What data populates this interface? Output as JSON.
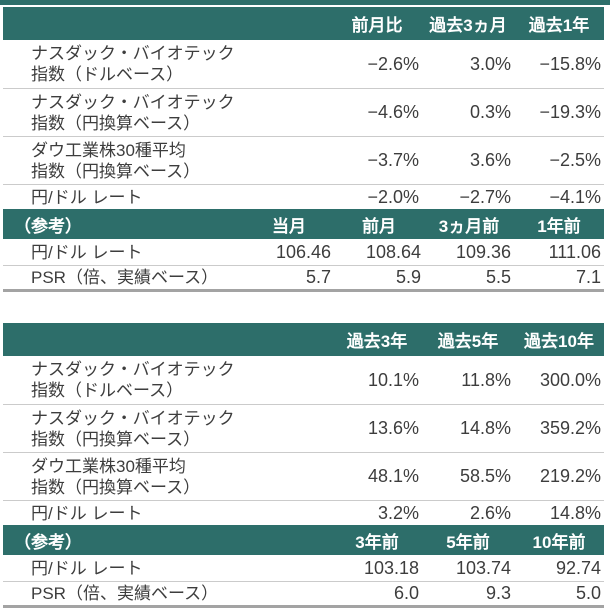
{
  "theme": {
    "teal": "#2D6E6A",
    "text": "#3D3D3D",
    "separator": "#CBCBCB",
    "bottom_border": "#A3A3A3"
  },
  "table1": {
    "columns": [
      "前月比",
      "過去3ヵ月",
      "過去1年"
    ],
    "rows": [
      {
        "label1": "ナスダック・バイオテック",
        "label2": "指数（ドルベース）",
        "values": [
          "−2.6%",
          "3.0%",
          "−15.8%"
        ]
      },
      {
        "label1": "ナスダック・バイオテック",
        "label2": "指数（円換算ベース）",
        "values": [
          "−4.6%",
          "0.3%",
          "−19.3%"
        ]
      },
      {
        "label1": "ダウ工業株30種平均",
        "label2": "指数（円換算ベース）",
        "values": [
          "−3.7%",
          "3.6%",
          "−2.5%"
        ]
      },
      {
        "label1": "円/ドル レート",
        "values": [
          "−2.0%",
          "−2.7%",
          "−4.1%"
        ]
      }
    ],
    "reference": {
      "label": "（参考）",
      "columns": [
        "当月",
        "前月",
        "3ヵ月前",
        "1年前"
      ],
      "rows": [
        {
          "label": "円/ドル レート",
          "values": [
            "106.46",
            "108.64",
            "109.36",
            "111.06"
          ]
        },
        {
          "label": "PSR（倍、実績ベース）",
          "values": [
            "5.7",
            "5.9",
            "5.5",
            "7.1"
          ]
        }
      ]
    }
  },
  "table2": {
    "columns": [
      "過去3年",
      "過去5年",
      "過去10年"
    ],
    "rows": [
      {
        "label1": "ナスダック・バイオテック",
        "label2": "指数（ドルベース）",
        "values": [
          "10.1%",
          "11.8%",
          "300.0%"
        ]
      },
      {
        "label1": "ナスダック・バイオテック",
        "label2": "指数（円換算ベース）",
        "values": [
          "13.6%",
          "14.8%",
          "359.2%"
        ]
      },
      {
        "label1": "ダウ工業株30種平均",
        "label2": "指数（円換算ベース）",
        "values": [
          "48.1%",
          "58.5%",
          "219.2%"
        ]
      },
      {
        "label1": "円/ドル レート",
        "values": [
          "3.2%",
          "2.6%",
          "14.8%"
        ]
      }
    ],
    "reference": {
      "label": "（参考）",
      "columns": [
        "3年前",
        "5年前",
        "10年前"
      ],
      "rows": [
        {
          "label": "円/ドル レート",
          "values": [
            "103.18",
            "103.74",
            "92.74"
          ]
        },
        {
          "label": "PSR（倍、実績ベース）",
          "values": [
            "6.0",
            "9.3",
            "5.0"
          ]
        }
      ]
    }
  }
}
